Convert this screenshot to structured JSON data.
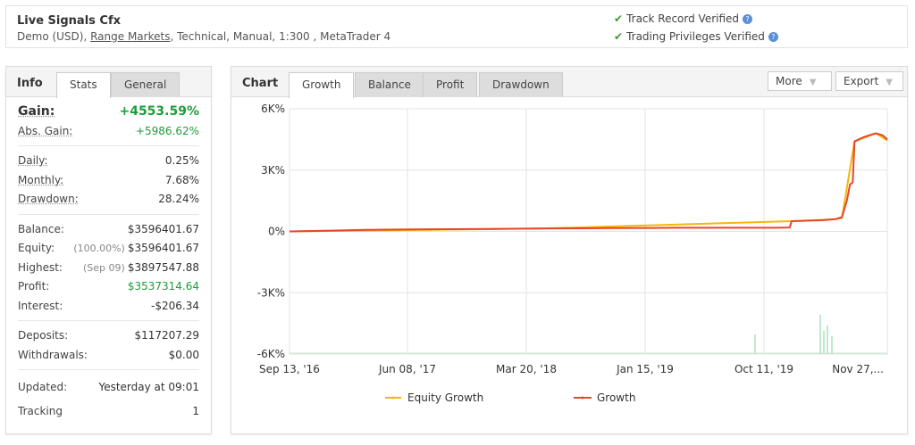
{
  "header": {
    "account_name": "Live Signals Cfx",
    "sub_prefix": "Demo (USD), ",
    "sub_link": "Range Markets",
    "sub_suffix": ", Technical, Manual, 1:300 , MetaTrader 4",
    "verified_1": "Track Record Verified",
    "verified_2": "Trading Privileges Verified",
    "help_icon": "question-icon",
    "check_icon": "check-icon"
  },
  "info": {
    "title": "Info",
    "tabs": [
      "Stats",
      "General"
    ],
    "gain_label": "Gain:",
    "gain_value": "+4553.59%",
    "abs_gain_label": "Abs. Gain:",
    "abs_gain_value": "+5986.62%",
    "daily_label": "Daily:",
    "daily_value": "0.25%",
    "monthly_label": "Monthly:",
    "monthly_value": "7.68%",
    "drawdown_label": "Drawdown:",
    "drawdown_value": "28.24%",
    "balance_label": "Balance:",
    "balance_value": "$3596401.67",
    "equity_label": "Equity:",
    "equity_note": "(100.00%)",
    "equity_value": "$3596401.67",
    "highest_label": "Highest:",
    "highest_note": "(Sep 09)",
    "highest_value": "$3897547.88",
    "profit_label": "Profit:",
    "profit_value": "$3537314.64",
    "interest_label": "Interest:",
    "interest_value": "-$206.34",
    "deposits_label": "Deposits:",
    "deposits_value": "$117207.29",
    "withdrawals_label": "Withdrawals:",
    "withdrawals_value": "$0.00",
    "updated_label": "Updated:",
    "updated_value": "Yesterday at 09:01",
    "tracking_label": "Tracking",
    "tracking_value": "1"
  },
  "chart_panel": {
    "title": "Chart",
    "tabs": [
      "Growth",
      "Balance",
      "Profit",
      "Drawdown"
    ],
    "more_label": "More",
    "export_label": "Export"
  },
  "chart_data": {
    "type": "line",
    "title": "",
    "xlabel": "",
    "ylabel": "",
    "y_ticks": [
      "6K%",
      "3K%",
      "0%",
      "-3K%",
      "-6K%"
    ],
    "y_tick_values": [
      6000,
      3000,
      0,
      -3000,
      -6000
    ],
    "ylim": [
      -6000,
      6000
    ],
    "x_ticks": [
      "Sep 13, '16",
      "Jun 08, '17",
      "Mar 20, '18",
      "Jan 15, '19",
      "Oct 11, '19",
      "Nov 27,..."
    ],
    "grid": true,
    "legend_position": "bottom",
    "colors": {
      "growth": "#e8452c",
      "equity": "#f5b70a",
      "volume": "#7ed39a"
    },
    "series": [
      {
        "name": "Growth",
        "x": [
          "2016-09-13",
          "2016-12-01",
          "2017-03-01",
          "2017-06-08",
          "2017-09-01",
          "2017-12-01",
          "2018-03-20",
          "2018-06-01",
          "2018-09-01",
          "2018-12-01",
          "2019-01-15",
          "2019-05-01",
          "2019-09-01",
          "2019-10-01",
          "2019-10-05",
          "2019-11-01",
          "2019-12-15",
          "2020-01-10",
          "2020-01-25",
          "2020-02-05",
          "2020-02-12",
          "2020-02-18",
          "2020-02-22",
          "2020-03-02",
          "2020-03-12",
          "2020-03-25",
          "2020-04-10",
          "2020-04-25",
          "2020-05-05"
        ],
        "values": [
          0,
          30,
          80,
          100,
          110,
          120,
          140,
          150,
          160,
          170,
          180,
          180,
          180,
          190,
          500,
          520,
          550,
          600,
          700,
          1500,
          2300,
          2400,
          4400,
          4500,
          4600,
          4700,
          4800,
          4700,
          4500
        ]
      },
      {
        "name": "Equity Growth",
        "x": [
          "2016-09-13",
          "2018-03-20",
          "2019-10-05",
          "2020-01-10",
          "2020-01-25",
          "2020-02-22",
          "2020-04-10",
          "2020-05-05"
        ],
        "values": [
          0,
          140,
          500,
          600,
          650,
          4400,
          4800,
          4450
        ]
      }
    ]
  }
}
